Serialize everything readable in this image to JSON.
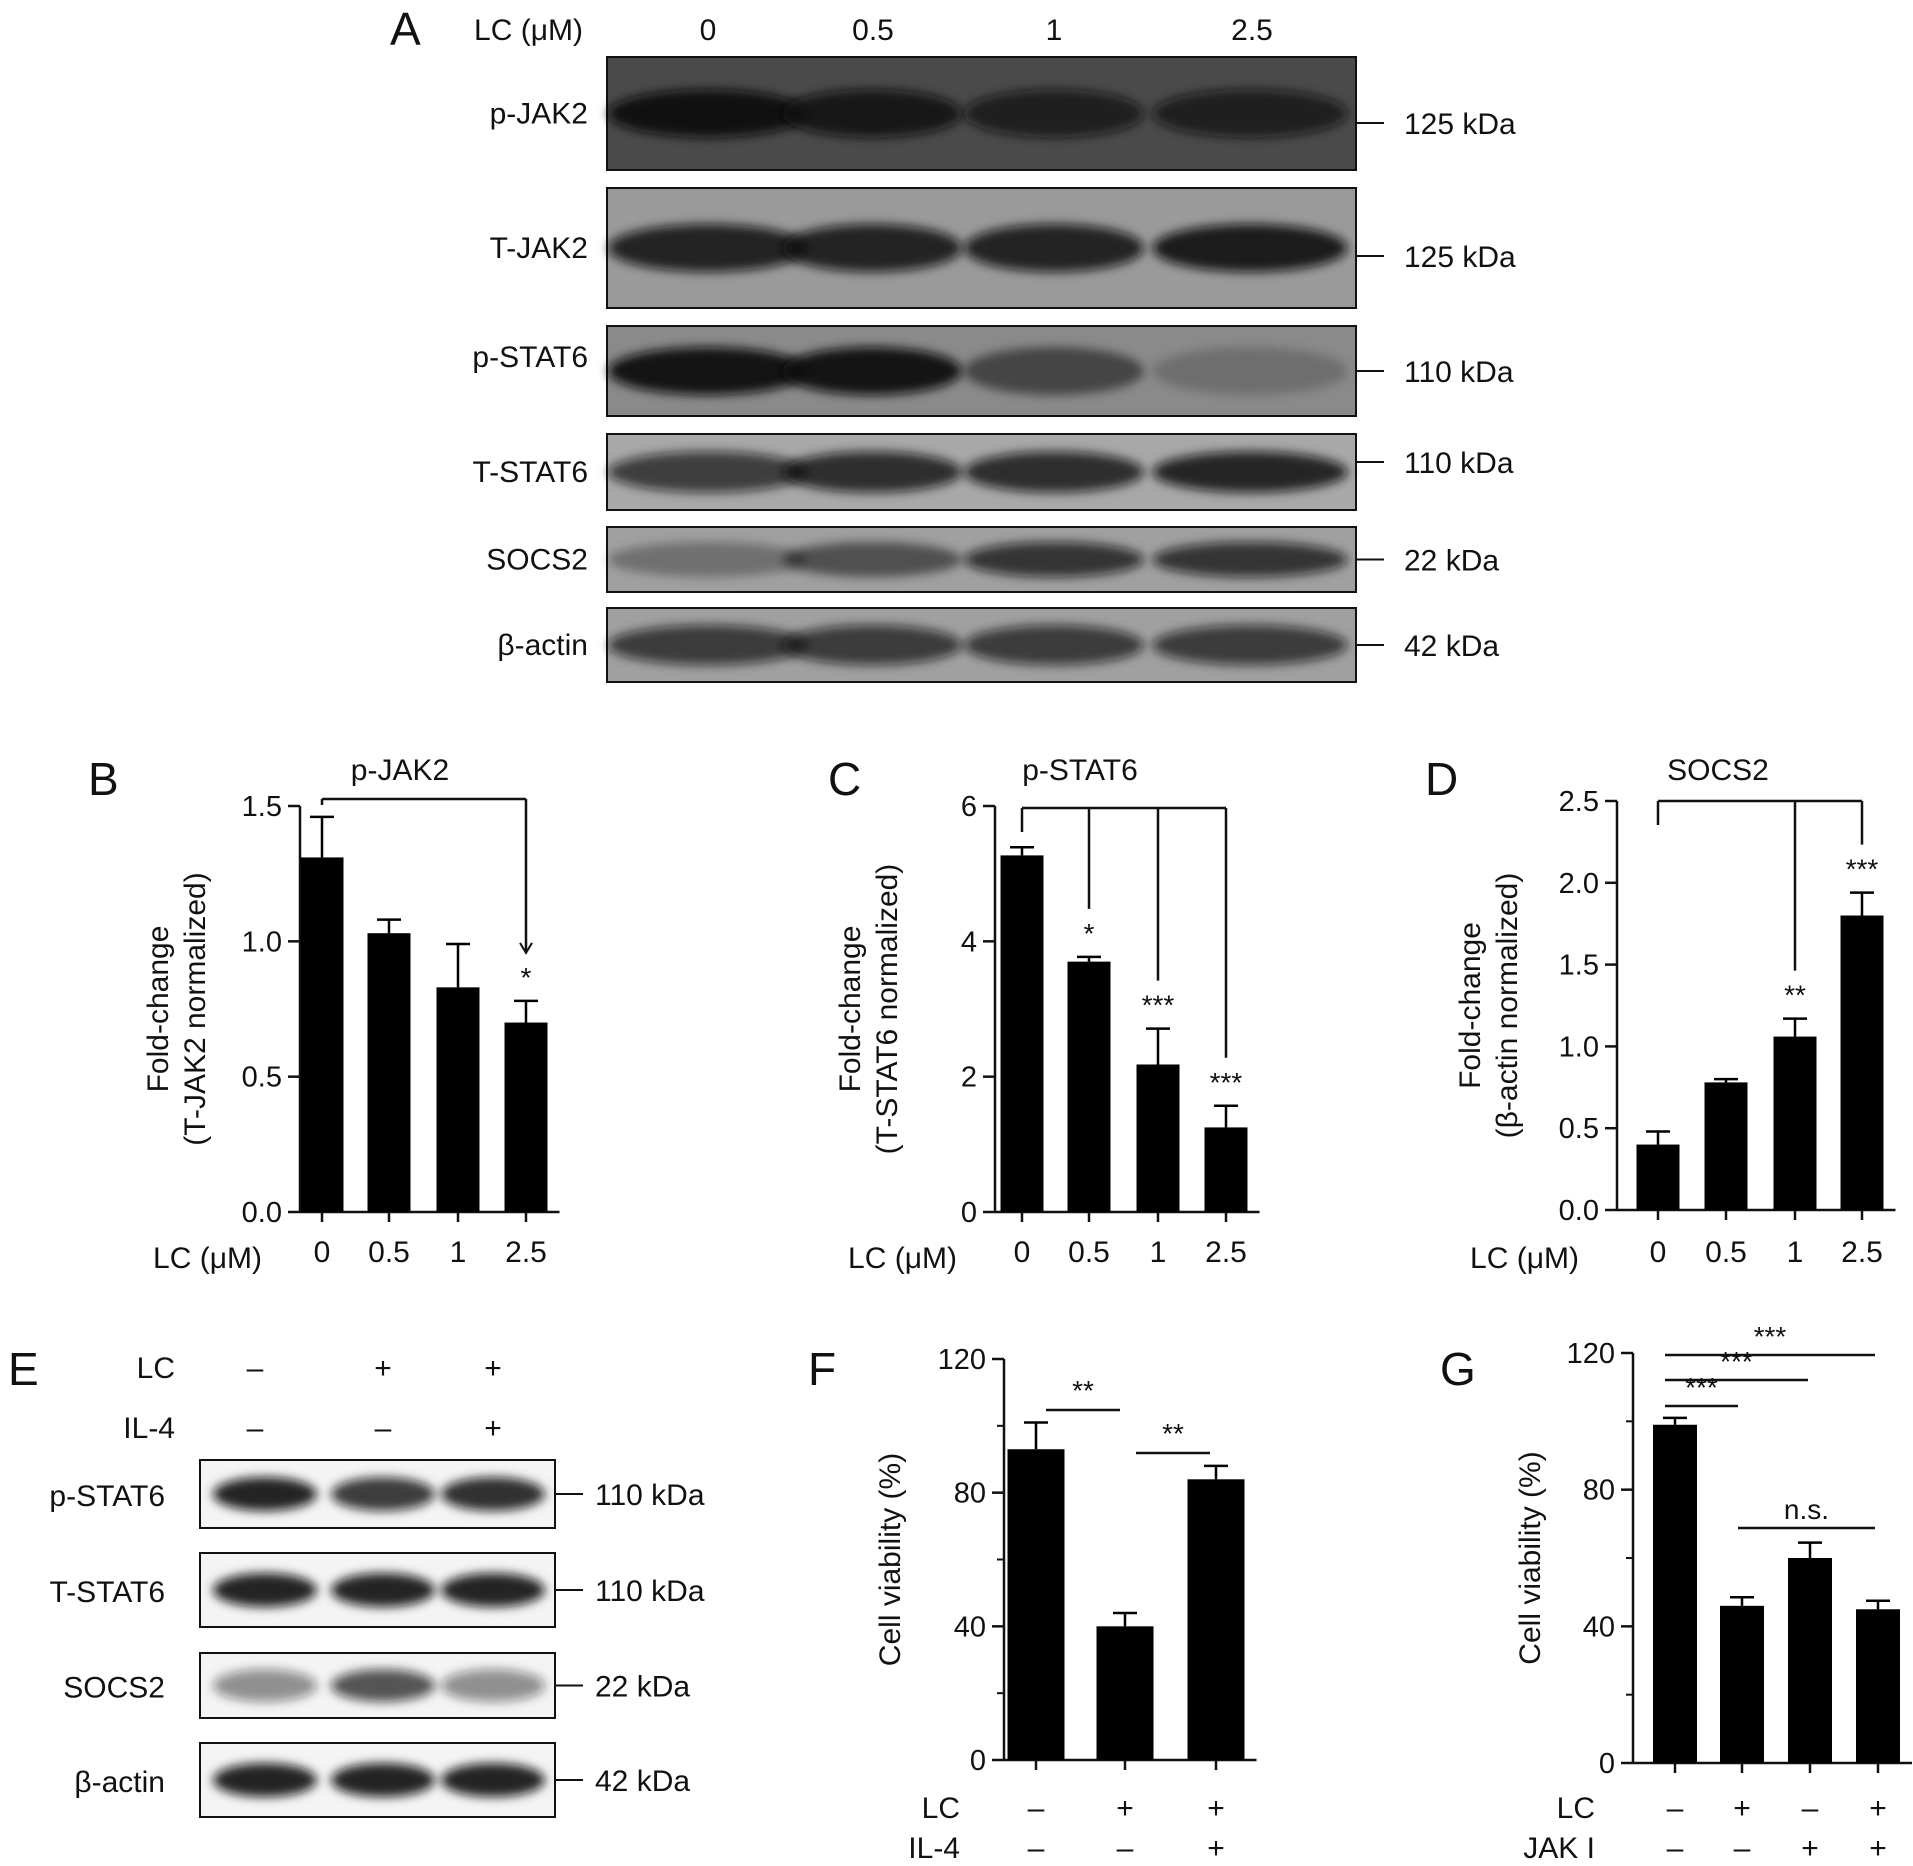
{
  "panel_letters": {
    "A": "A",
    "B": "B",
    "C": "C",
    "D": "D",
    "E": "E",
    "F": "F",
    "G": "G"
  },
  "blot_A": {
    "header_label": "LC (μM)",
    "lanes": [
      "0",
      "0.5",
      "1",
      "2.5"
    ],
    "rows": [
      {
        "label": "p-JAK2",
        "kda": "125 kDa",
        "intensity": [
          0.95,
          0.85,
          0.75,
          0.75
        ],
        "background": "#4a4a4a"
      },
      {
        "label": "T-JAK2",
        "kda": "125 kDa",
        "intensity": [
          0.85,
          0.85,
          0.85,
          0.9
        ],
        "background": "#9a9a9a"
      },
      {
        "label": "p-STAT6",
        "kda": "110 kDa",
        "intensity": [
          0.95,
          0.95,
          0.5,
          0.2
        ],
        "background": "#8a8a8a"
      },
      {
        "label": "T-STAT6",
        "kda": "110 kDa",
        "intensity": [
          0.7,
          0.8,
          0.8,
          0.85
        ],
        "background": "#a8a8a8"
      },
      {
        "label": "SOCS2",
        "kda": "22 kDa",
        "intensity": [
          0.3,
          0.5,
          0.75,
          0.75
        ],
        "background": "#a0a0a0"
      },
      {
        "label": "β-actin",
        "kda": "42 kDa",
        "intensity": [
          0.7,
          0.7,
          0.7,
          0.7
        ],
        "background": "#a0a0a0"
      }
    ]
  },
  "blot_E": {
    "conditions": [
      {
        "label": "LC",
        "values": [
          "–",
          "+",
          "+"
        ]
      },
      {
        "label": "IL-4",
        "values": [
          "–",
          "–",
          "+"
        ]
      }
    ],
    "rows": [
      {
        "label": "p-STAT6",
        "kda": "110 kDa",
        "intensity": [
          0.9,
          0.8,
          0.85
        ]
      },
      {
        "label": "T-STAT6",
        "kda": "110 kDa",
        "intensity": [
          0.9,
          0.9,
          0.9
        ]
      },
      {
        "label": "SOCS2",
        "kda": "22 kDa",
        "intensity": [
          0.45,
          0.7,
          0.45
        ]
      },
      {
        "label": "β-actin",
        "kda": "42 kDa",
        "intensity": [
          0.9,
          0.9,
          0.9
        ]
      }
    ]
  },
  "chart_data": [
    {
      "panel": "B",
      "type": "bar",
      "title": "p-JAK2",
      "ylabel_line1": "Fold-change",
      "ylabel_line2": "(T-JAK2 normalized)",
      "xlabel": "LC (μM)",
      "categories": [
        "0",
        "0.5",
        "1",
        "2.5"
      ],
      "values": [
        1.31,
        1.03,
        0.83,
        0.7
      ],
      "errors": [
        0.15,
        0.05,
        0.16,
        0.08
      ],
      "ylim": [
        0,
        1.5
      ],
      "yticks": [
        "0.0",
        "0.5",
        "1.0",
        "1.5"
      ],
      "significance": [
        {
          "from": 0,
          "to": 3,
          "label": "*"
        }
      ]
    },
    {
      "panel": "C",
      "type": "bar",
      "title": "p-STAT6",
      "ylabel_line1": "Fold-change",
      "ylabel_line2": "(T-STAT6 normalized)",
      "xlabel": "LC (μM)",
      "categories": [
        "0",
        "0.5",
        "1",
        "2.5"
      ],
      "values": [
        5.27,
        3.7,
        2.18,
        1.25
      ],
      "errors": [
        0.12,
        0.07,
        0.53,
        0.32
      ],
      "ylim": [
        0,
        6
      ],
      "yticks": [
        "0",
        "2",
        "4",
        "6"
      ],
      "significance": [
        {
          "from": 0,
          "to": 1,
          "label": "*"
        },
        {
          "from": 0,
          "to": 2,
          "label": "***"
        },
        {
          "from": 0,
          "to": 3,
          "label": "***"
        }
      ]
    },
    {
      "panel": "D",
      "type": "bar",
      "title": "SOCS2",
      "ylabel_line1": "Fold-change",
      "ylabel_line2": "(β-actin normalized)",
      "xlabel": "LC (μM)",
      "categories": [
        "0",
        "0.5",
        "1",
        "2.5"
      ],
      "values": [
        0.4,
        0.78,
        1.06,
        1.8
      ],
      "errors": [
        0.08,
        0.02,
        0.11,
        0.14
      ],
      "ylim": [
        0,
        2.5
      ],
      "yticks": [
        "0.0",
        "0.5",
        "1.0",
        "1.5",
        "2.0",
        "2.5"
      ],
      "significance": [
        {
          "from": 0,
          "to": 2,
          "label": "**"
        },
        {
          "from": 0,
          "to": 3,
          "label": "***"
        }
      ]
    },
    {
      "panel": "F",
      "type": "bar",
      "title": "",
      "ylabel_line1": "Cell viability (%)",
      "ylabel_line2": "",
      "conditions": [
        {
          "label": "LC",
          "values": [
            "–",
            "+",
            "+"
          ]
        },
        {
          "label": "IL-4",
          "values": [
            "–",
            "–",
            "+"
          ]
        }
      ],
      "values": [
        93,
        40,
        84
      ],
      "errors": [
        8,
        4,
        4
      ],
      "ylim": [
        0,
        120
      ],
      "yticks": [
        "0",
        "40",
        "80",
        "120"
      ],
      "significance": [
        {
          "from": 0,
          "to": 1,
          "label": "**"
        },
        {
          "from": 1,
          "to": 2,
          "label": "**"
        }
      ]
    },
    {
      "panel": "G",
      "type": "bar",
      "title": "",
      "ylabel_line1": "Cell viability (%)",
      "ylabel_line2": "",
      "conditions": [
        {
          "label": "LC",
          "values": [
            "–",
            "+",
            "–",
            "+"
          ]
        },
        {
          "label": "JAK I",
          "values": [
            "–",
            "–",
            "+",
            "+"
          ]
        }
      ],
      "values": [
        99,
        46,
        60,
        45
      ],
      "errors": [
        2,
        2.5,
        4.5,
        2.5
      ],
      "ylim": [
        0,
        120
      ],
      "yticks": [
        "0",
        "40",
        "80",
        "120"
      ],
      "significance": [
        {
          "from": 0,
          "to": 3,
          "label": "***"
        },
        {
          "from": 0,
          "to": 2,
          "label": "***"
        },
        {
          "from": 0,
          "to": 1,
          "label": "***"
        },
        {
          "from": 1,
          "to": 3,
          "label": "n.s."
        }
      ]
    }
  ]
}
